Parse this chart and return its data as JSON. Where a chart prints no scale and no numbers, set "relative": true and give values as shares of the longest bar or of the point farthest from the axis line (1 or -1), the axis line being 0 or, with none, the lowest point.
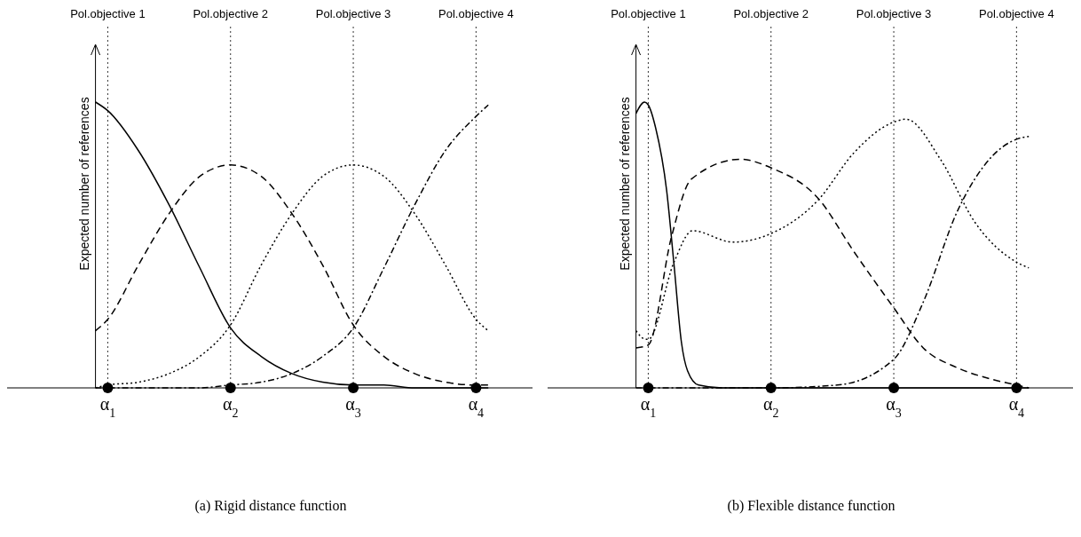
{
  "chart_data": [
    {
      "type": "line",
      "relative": true,
      "ylabel": "Expected number of references",
      "xlim": [
        0.18,
        4.46
      ],
      "xticks": [
        {
          "value": 1,
          "label": "α$_{1}$"
        },
        {
          "value": 2,
          "label": "α$_{2}$"
        },
        {
          "value": 3,
          "label": "α$_{3}$"
        },
        {
          "value": 4,
          "label": "α$_{4}$"
        }
      ],
      "series": [
        {
          "color": "#000000",
          "line_style": "solid",
          "x": [
            0.9,
            1,
            1.25,
            1.5,
            1.75,
            2,
            2.25,
            2.5,
            2.75,
            3,
            3.25,
            3.5,
            3.75,
            4,
            4.1
          ],
          "values": [
            1.0,
            0.97,
            0.83,
            0.64,
            0.42,
            0.21,
            0.11,
            0.05,
            0.02,
            0.01,
            0.01,
            0,
            0,
            0,
            0
          ]
        },
        {
          "color": "#000000",
          "line_style": "dashed",
          "x": [
            0.9,
            1,
            1.25,
            1.5,
            1.75,
            2,
            2.25,
            2.5,
            2.75,
            3,
            3.25,
            3.5,
            3.75,
            4,
            4.1
          ],
          "values": [
            0.2,
            0.24,
            0.43,
            0.61,
            0.74,
            0.78,
            0.74,
            0.61,
            0.43,
            0.22,
            0.11,
            0.05,
            0.02,
            0.01,
            0.01
          ]
        },
        {
          "color": "#000000",
          "line_style": "dotted",
          "x": [
            0.9,
            1,
            1.25,
            1.5,
            1.75,
            2,
            2.25,
            2.5,
            2.75,
            3,
            3.25,
            3.5,
            3.75,
            4,
            4.1
          ],
          "values": [
            0,
            0.01,
            0.02,
            0.05,
            0.11,
            0.22,
            0.43,
            0.61,
            0.74,
            0.78,
            0.74,
            0.61,
            0.43,
            0.24,
            0.2
          ]
        },
        {
          "color": "#000000",
          "line_style": "dashdot",
          "x": [
            0.9,
            1,
            1.25,
            1.5,
            1.75,
            2,
            2.25,
            2.5,
            2.75,
            3,
            3.25,
            3.5,
            3.75,
            4,
            4.1
          ],
          "values": [
            0,
            0,
            0,
            0,
            0,
            0.01,
            0.02,
            0.05,
            0.11,
            0.21,
            0.42,
            0.64,
            0.83,
            0.95,
            0.99
          ]
        },
        {
          "type": "scatter",
          "marker": "circle",
          "color": "#000000",
          "x": [
            1,
            2,
            3,
            4
          ],
          "values": [
            0,
            0,
            0,
            0
          ]
        }
      ],
      "ref_lines": [
        {
          "axis": "x",
          "value": 0.9,
          "line_style": "solid"
        },
        {
          "axis": "x",
          "value": 1,
          "line_style": "dotted",
          "label": "Pol.objective 1"
        },
        {
          "axis": "x",
          "value": 2,
          "line_style": "dotted",
          "label": "Pol.objective 2"
        },
        {
          "axis": "x",
          "value": 3,
          "line_style": "dotted",
          "label": "Pol.objective 3"
        },
        {
          "axis": "x",
          "value": 4,
          "line_style": "dotted",
          "label": "Pol.objective 4"
        }
      ],
      "annotations": [
        "(a) Rigid distance function"
      ]
    },
    {
      "type": "line",
      "relative": true,
      "ylabel": "Expected number of references",
      "xlim": [
        0.18,
        4.46
      ],
      "xticks": [
        {
          "value": 1,
          "label": "α$_{1}$"
        },
        {
          "value": 2,
          "label": "α$_{2}$"
        },
        {
          "value": 3,
          "label": "α$_{3}$"
        },
        {
          "value": 4,
          "label": "α$_{4}$"
        }
      ],
      "series": [
        {
          "color": "#000000",
          "line_style": "solid",
          "x": [
            0.9,
            0.97,
            1,
            1.06,
            1.15,
            1.21,
            1.27,
            1.32,
            1.41,
            1.6,
            2,
            3,
            4,
            4.1
          ],
          "values": [
            0.96,
            1.0,
            0.99,
            0.91,
            0.69,
            0.43,
            0.16,
            0.06,
            0.01,
            0,
            0,
            0,
            0,
            0
          ]
        },
        {
          "color": "#000000",
          "line_style": "dashed",
          "x": [
            0.9,
            1,
            1.19,
            1.35,
            1.75,
            2,
            2.39,
            2.67,
            3,
            3.24,
            3.52,
            3.8,
            4,
            4.1
          ],
          "values": [
            0.14,
            0.15,
            0.53,
            0.73,
            0.8,
            0.77,
            0.66,
            0.48,
            0.28,
            0.14,
            0.07,
            0.03,
            0.01,
            0
          ]
        },
        {
          "color": "#000000",
          "line_style": "dotted",
          "x": [
            0.9,
            0.98,
            1,
            1.21,
            1.36,
            1.69,
            2,
            2.39,
            2.67,
            3,
            3.1,
            3.38,
            3.66,
            4,
            4.1
          ],
          "values": [
            0.2,
            0.17,
            0.17,
            0.44,
            0.55,
            0.51,
            0.54,
            0.66,
            0.82,
            0.93,
            0.94,
            0.8,
            0.58,
            0.44,
            0.42
          ]
        },
        {
          "color": "#000000",
          "line_style": "dashdot",
          "x": [
            0.9,
            2,
            2.54,
            3,
            3.24,
            3.52,
            3.8,
            4,
            4.1
          ],
          "values": [
            0,
            0,
            0.01,
            0.1,
            0.3,
            0.62,
            0.81,
            0.87,
            0.88
          ]
        },
        {
          "type": "scatter",
          "marker": "circle",
          "color": "#000000",
          "x": [
            1,
            2,
            3,
            4
          ],
          "values": [
            0,
            0,
            0,
            0
          ]
        }
      ],
      "ref_lines": [
        {
          "axis": "x",
          "value": 0.9,
          "line_style": "solid"
        },
        {
          "axis": "x",
          "value": 1,
          "line_style": "dotted",
          "label": "Pol.objective 1"
        },
        {
          "axis": "x",
          "value": 2,
          "line_style": "dotted",
          "label": "Pol.objective 2"
        },
        {
          "axis": "x",
          "value": 3,
          "line_style": "dotted",
          "label": "Pol.objective 3"
        },
        {
          "axis": "x",
          "value": 4,
          "line_style": "dotted",
          "label": "Pol.objective 4"
        }
      ],
      "annotations": [
        "(b) Flexible distance function"
      ]
    }
  ]
}
